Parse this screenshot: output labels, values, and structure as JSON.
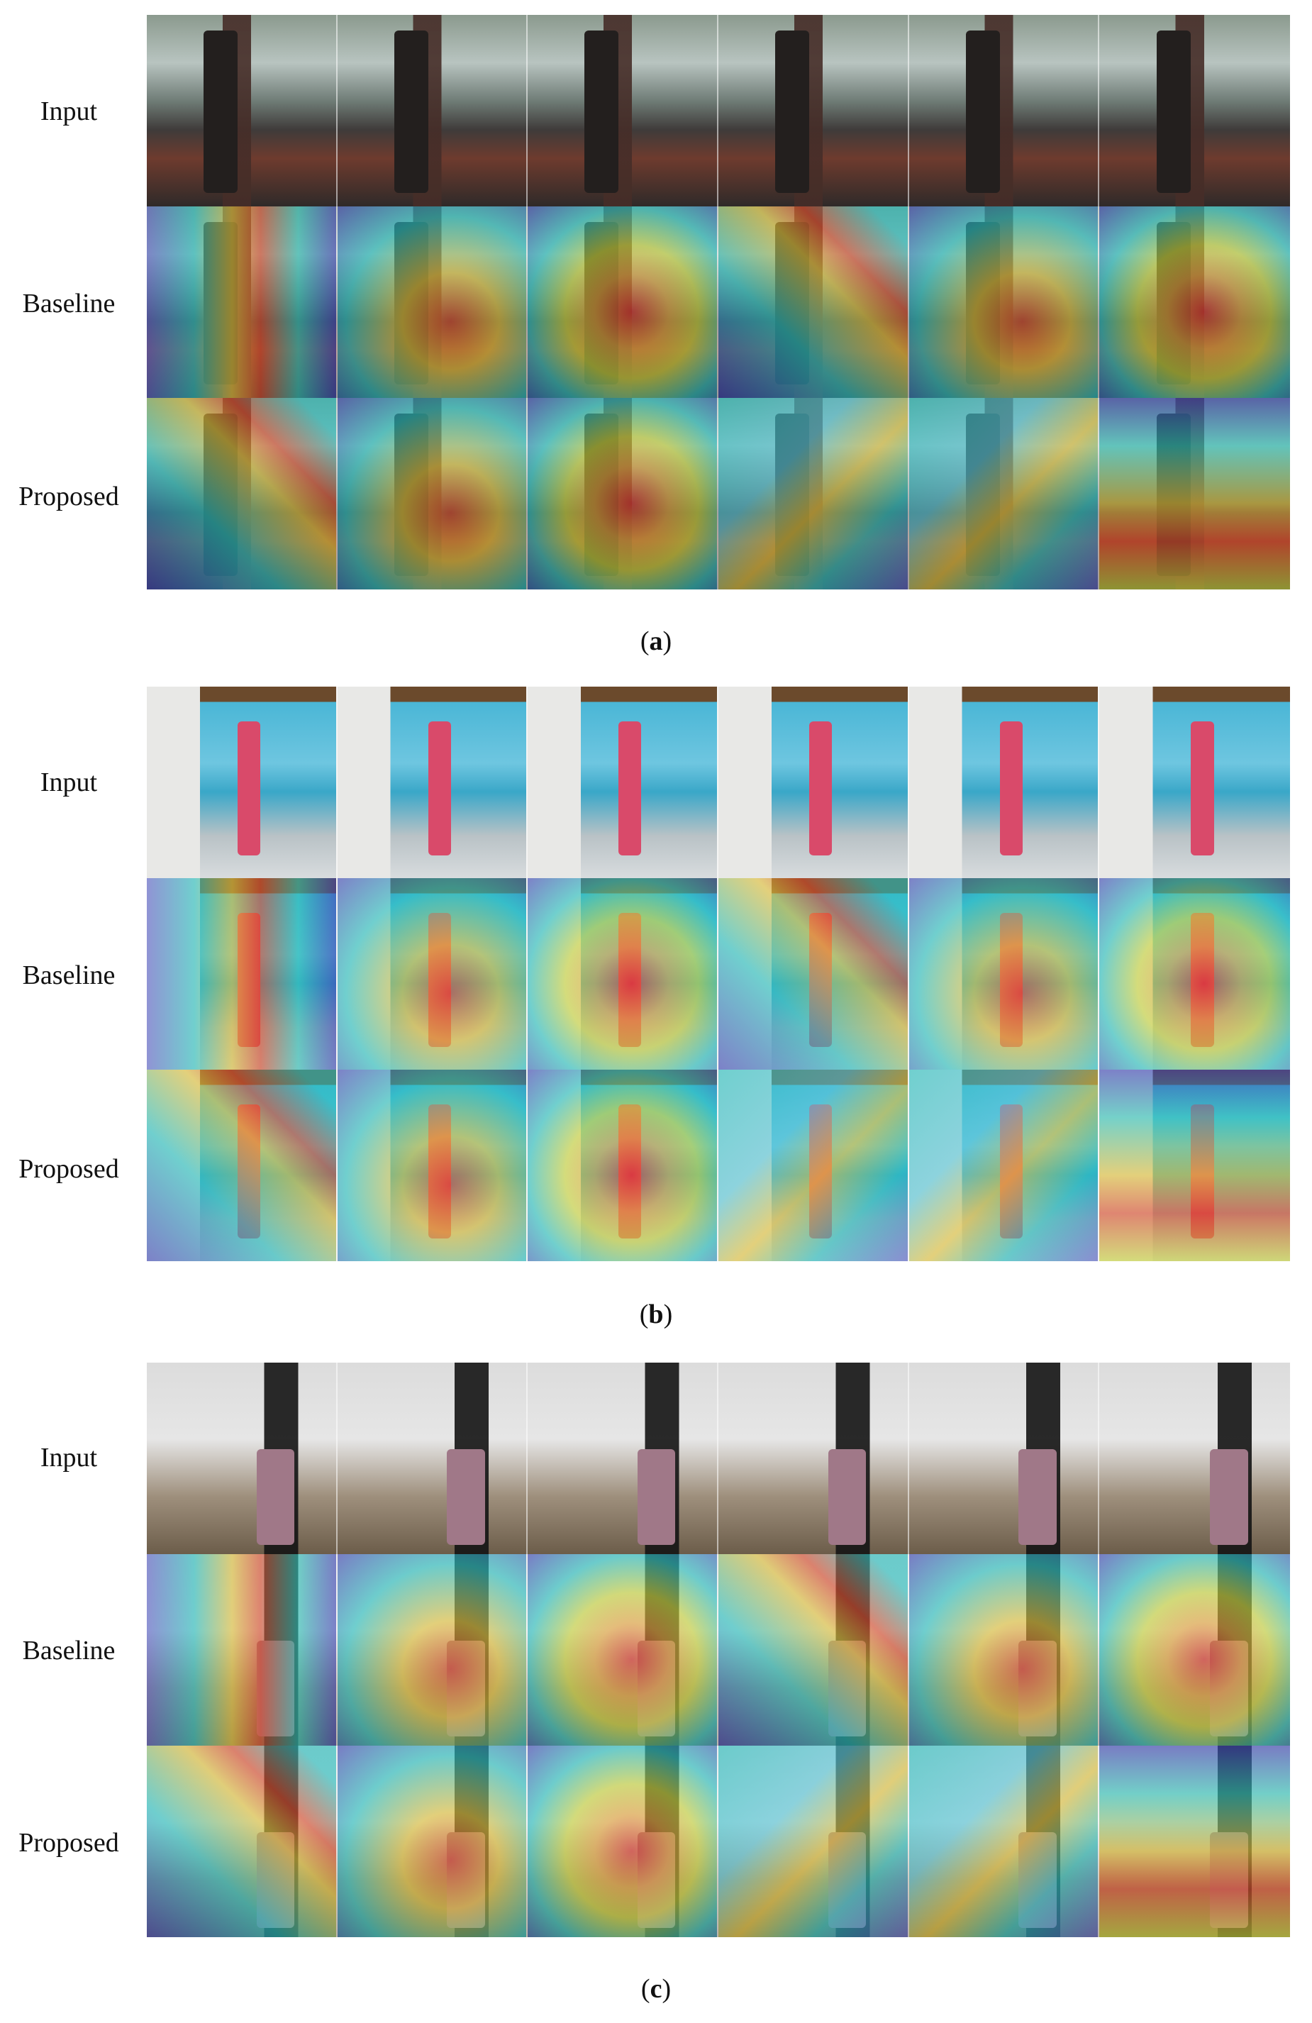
{
  "panels": [
    {
      "id": "a",
      "caption_open": "(",
      "caption_letter": "a",
      "caption_close": ")",
      "row_labels": [
        "Input",
        "Baseline",
        "Proposed"
      ]
    },
    {
      "id": "b",
      "caption_open": "(",
      "caption_letter": "b",
      "caption_close": ")",
      "row_labels": [
        "Input",
        "Baseline",
        "Proposed"
      ]
    },
    {
      "id": "c",
      "caption_open": "(",
      "caption_letter": "c",
      "caption_close": ")",
      "row_labels": [
        "Input",
        "Baseline",
        "Proposed"
      ]
    }
  ]
}
